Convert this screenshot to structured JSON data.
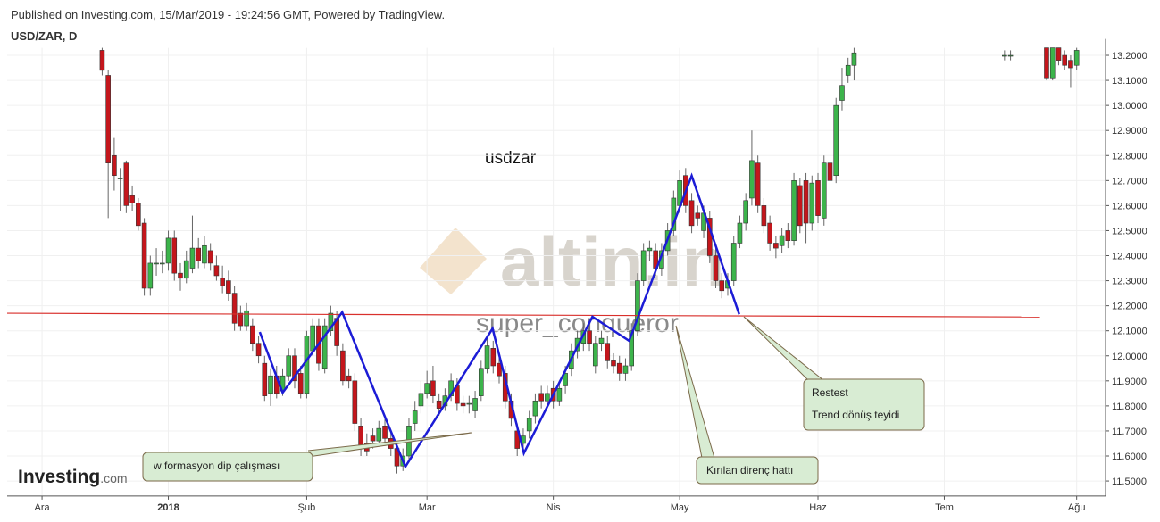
{
  "chart_data": {
    "type": "candlestick",
    "subtitle": "Published on Investing.com, 15/Mar/2019 - 19:24:56 GMT, Powered by TradingView.",
    "title": "USD/ZAR, D",
    "label": "usdzar",
    "watermarks": [
      "altin.in",
      "super_conqueror"
    ],
    "logo": [
      "Investing",
      ".com"
    ],
    "callouts": [
      "w  formasyon dip çalışması",
      "Kırılan direnç hattı",
      "Restest",
      "Trend dönüş teyidi"
    ],
    "up_color": "#3cb44b",
    "down_color": "#c4161c",
    "xlim": [
      -5.8,
      176.8
    ],
    "xticks": [
      {
        "value": 0,
        "label": "Ara"
      },
      {
        "value": 21,
        "label": "2018"
      },
      {
        "value": 44,
        "label": "Şub"
      },
      {
        "value": 64,
        "label": "Mar"
      },
      {
        "value": 85,
        "label": "Nis"
      },
      {
        "value": 106,
        "label": "May"
      },
      {
        "value": 129,
        "label": "Haz"
      },
      {
        "value": 150,
        "label": "Tem"
      },
      {
        "value": 172,
        "label": "Ağu"
      }
    ],
    "ylim": [
      11.44,
      13.23
    ],
    "yticks": [
      {
        "value": 11.5,
        "label": "11.5000"
      },
      {
        "value": 11.6,
        "label": "11.6000"
      },
      {
        "value": 11.7,
        "label": "11.7000"
      },
      {
        "value": 11.8,
        "label": "11.8000"
      },
      {
        "value": 11.9,
        "label": "11.9000"
      },
      {
        "value": 12,
        "label": "12.0000"
      },
      {
        "value": 12.1,
        "label": "12.1000"
      },
      {
        "value": 12.2,
        "label": "12.2000"
      },
      {
        "value": 12.3,
        "label": "12.3000"
      },
      {
        "value": 12.4,
        "label": "12.4000"
      },
      {
        "value": 12.5,
        "label": "12.5000"
      },
      {
        "value": 12.6,
        "label": "12.6000"
      },
      {
        "value": 12.7,
        "label": "12.7000"
      },
      {
        "value": 12.8,
        "label": "12.8000"
      },
      {
        "value": 12.9,
        "label": "12.9000"
      },
      {
        "value": 13,
        "label": "13.0000"
      },
      {
        "value": 13.1,
        "label": "13.1000"
      },
      {
        "value": 13.2,
        "label": "13.2000"
      }
    ],
    "candles": [
      {
        "x": 10,
        "o": 13.22,
        "h": 13.23,
        "l": 13.12,
        "c": 13.14
      },
      {
        "x": 11,
        "o": 13.12,
        "h": 13.14,
        "l": 12.55,
        "c": 12.77
      },
      {
        "x": 12,
        "o": 12.8,
        "h": 12.87,
        "l": 12.66,
        "c": 12.72
      },
      {
        "x": 13,
        "o": 12.71,
        "h": 12.75,
        "l": 12.58,
        "c": 12.71
      },
      {
        "x": 14,
        "o": 12.77,
        "h": 12.78,
        "l": 12.57,
        "c": 12.6
      },
      {
        "x": 15,
        "o": 12.64,
        "h": 12.68,
        "l": 12.58,
        "c": 12.61
      },
      {
        "x": 16,
        "o": 12.61,
        "h": 12.63,
        "l": 12.5,
        "c": 12.52
      },
      {
        "x": 17,
        "o": 12.53,
        "h": 12.55,
        "l": 12.24,
        "c": 12.27
      },
      {
        "x": 18,
        "o": 12.27,
        "h": 12.4,
        "l": 12.24,
        "c": 12.37
      },
      {
        "x": 19,
        "o": 12.37,
        "h": 12.43,
        "l": 12.32,
        "c": 12.37
      },
      {
        "x": 20,
        "o": 12.37,
        "h": 12.42,
        "l": 12.33,
        "c": 12.37
      },
      {
        "x": 21,
        "o": 12.37,
        "h": 12.5,
        "l": 12.34,
        "c": 12.47
      },
      {
        "x": 22,
        "o": 12.47,
        "h": 12.5,
        "l": 12.3,
        "c": 12.33
      },
      {
        "x": 23,
        "o": 12.33,
        "h": 12.37,
        "l": 12.26,
        "c": 12.31
      },
      {
        "x": 24,
        "o": 12.31,
        "h": 12.42,
        "l": 12.29,
        "c": 12.38
      },
      {
        "x": 25,
        "o": 12.35,
        "h": 12.56,
        "l": 12.33,
        "c": 12.43
      },
      {
        "x": 26,
        "o": 12.43,
        "h": 12.47,
        "l": 12.35,
        "c": 12.38
      },
      {
        "x": 27,
        "o": 12.37,
        "h": 12.48,
        "l": 12.35,
        "c": 12.44
      },
      {
        "x": 28,
        "o": 12.42,
        "h": 12.45,
        "l": 12.34,
        "c": 12.37
      },
      {
        "x": 29,
        "o": 12.36,
        "h": 12.4,
        "l": 12.3,
        "c": 12.32
      },
      {
        "x": 30,
        "o": 12.31,
        "h": 12.36,
        "l": 12.25,
        "c": 12.28
      },
      {
        "x": 31,
        "o": 12.3,
        "h": 12.34,
        "l": 12.22,
        "c": 12.25
      },
      {
        "x": 32,
        "o": 12.25,
        "h": 12.28,
        "l": 12.1,
        "c": 12.13
      },
      {
        "x": 33,
        "o": 12.17,
        "h": 12.2,
        "l": 12.1,
        "c": 12.12
      },
      {
        "x": 34,
        "o": 12.12,
        "h": 12.21,
        "l": 12.1,
        "c": 12.18
      },
      {
        "x": 35,
        "o": 12.12,
        "h": 12.15,
        "l": 12.02,
        "c": 12.05
      },
      {
        "x": 36,
        "o": 12.05,
        "h": 12.08,
        "l": 11.97,
        "c": 12.0
      },
      {
        "x": 37,
        "o": 11.97,
        "h": 12.0,
        "l": 11.82,
        "c": 11.84
      },
      {
        "x": 38,
        "o": 11.85,
        "h": 11.95,
        "l": 11.8,
        "c": 11.92
      },
      {
        "x": 39,
        "o": 11.92,
        "h": 11.96,
        "l": 11.83,
        "c": 11.85
      },
      {
        "x": 40,
        "o": 11.86,
        "h": 11.95,
        "l": 11.84,
        "c": 11.92
      },
      {
        "x": 41,
        "o": 11.92,
        "h": 12.03,
        "l": 11.9,
        "c": 12.0
      },
      {
        "x": 42,
        "o": 12.0,
        "h": 12.03,
        "l": 11.87,
        "c": 11.9
      },
      {
        "x": 43,
        "o": 11.93,
        "h": 11.96,
        "l": 11.83,
        "c": 11.85
      },
      {
        "x": 44,
        "o": 11.85,
        "h": 12.1,
        "l": 11.83,
        "c": 12.08
      },
      {
        "x": 45,
        "o": 12.02,
        "h": 12.15,
        "l": 12.0,
        "c": 12.12
      },
      {
        "x": 46,
        "o": 12.12,
        "h": 12.15,
        "l": 11.94,
        "c": 11.97
      },
      {
        "x": 47,
        "o": 11.95,
        "h": 12.15,
        "l": 11.93,
        "c": 12.12
      },
      {
        "x": 48,
        "o": 12.1,
        "h": 12.2,
        "l": 12.08,
        "c": 12.17
      },
      {
        "x": 49,
        "o": 12.15,
        "h": 12.18,
        "l": 12.0,
        "c": 12.04
      },
      {
        "x": 50,
        "o": 12.02,
        "h": 12.05,
        "l": 11.88,
        "c": 11.9
      },
      {
        "x": 51,
        "o": 11.92,
        "h": 11.95,
        "l": 11.87,
        "c": 11.9
      },
      {
        "x": 52,
        "o": 11.9,
        "h": 11.93,
        "l": 11.7,
        "c": 11.73
      },
      {
        "x": 53,
        "o": 11.72,
        "h": 11.75,
        "l": 11.6,
        "c": 11.64
      },
      {
        "x": 54,
        "o": 11.65,
        "h": 11.69,
        "l": 11.6,
        "c": 11.62
      },
      {
        "x": 55,
        "o": 11.68,
        "h": 11.71,
        "l": 11.63,
        "c": 11.66
      },
      {
        "x": 56,
        "o": 11.66,
        "h": 11.74,
        "l": 11.64,
        "c": 11.71
      },
      {
        "x": 57,
        "o": 11.72,
        "h": 11.75,
        "l": 11.64,
        "c": 11.67
      },
      {
        "x": 58,
        "o": 11.67,
        "h": 11.7,
        "l": 11.6,
        "c": 11.63
      },
      {
        "x": 59,
        "o": 11.63,
        "h": 11.66,
        "l": 11.53,
        "c": 11.56
      },
      {
        "x": 60,
        "o": 11.56,
        "h": 11.63,
        "l": 11.54,
        "c": 11.6
      },
      {
        "x": 61,
        "o": 11.6,
        "h": 11.75,
        "l": 11.58,
        "c": 11.72
      },
      {
        "x": 62,
        "o": 11.73,
        "h": 11.82,
        "l": 11.7,
        "c": 11.78
      },
      {
        "x": 63,
        "o": 11.8,
        "h": 11.9,
        "l": 11.77,
        "c": 11.85
      },
      {
        "x": 64,
        "o": 11.85,
        "h": 11.94,
        "l": 11.83,
        "c": 11.89
      },
      {
        "x": 65,
        "o": 11.9,
        "h": 11.96,
        "l": 11.81,
        "c": 11.84
      },
      {
        "x": 66,
        "o": 11.82,
        "h": 11.85,
        "l": 11.76,
        "c": 11.79
      },
      {
        "x": 67,
        "o": 11.8,
        "h": 11.87,
        "l": 11.78,
        "c": 11.84
      },
      {
        "x": 68,
        "o": 11.84,
        "h": 11.93,
        "l": 11.82,
        "c": 11.9
      },
      {
        "x": 69,
        "o": 11.88,
        "h": 11.91,
        "l": 11.78,
        "c": 11.81
      },
      {
        "x": 70,
        "o": 11.81,
        "h": 11.84,
        "l": 11.77,
        "c": 11.8
      },
      {
        "x": 71,
        "o": 11.81,
        "h": 11.84,
        "l": 11.77,
        "c": 11.81
      },
      {
        "x": 72,
        "o": 11.78,
        "h": 11.86,
        "l": 11.75,
        "c": 11.83
      },
      {
        "x": 73,
        "o": 11.84,
        "h": 11.98,
        "l": 11.82,
        "c": 11.95
      },
      {
        "x": 74,
        "o": 11.95,
        "h": 12.08,
        "l": 11.93,
        "c": 12.04
      },
      {
        "x": 75,
        "o": 12.03,
        "h": 12.06,
        "l": 11.93,
        "c": 11.96
      },
      {
        "x": 76,
        "o": 11.97,
        "h": 12.0,
        "l": 11.89,
        "c": 11.92
      },
      {
        "x": 77,
        "o": 11.93,
        "h": 11.96,
        "l": 11.79,
        "c": 11.82
      },
      {
        "x": 78,
        "o": 11.82,
        "h": 11.85,
        "l": 11.72,
        "c": 11.75
      },
      {
        "x": 79,
        "o": 11.7,
        "h": 11.73,
        "l": 11.6,
        "c": 11.63
      },
      {
        "x": 80,
        "o": 11.65,
        "h": 11.71,
        "l": 11.62,
        "c": 11.68
      },
      {
        "x": 81,
        "o": 11.7,
        "h": 11.78,
        "l": 11.67,
        "c": 11.75
      },
      {
        "x": 82,
        "o": 11.76,
        "h": 11.85,
        "l": 11.73,
        "c": 11.82
      },
      {
        "x": 83,
        "o": 11.85,
        "h": 11.88,
        "l": 11.79,
        "c": 11.82
      },
      {
        "x": 84,
        "o": 11.82,
        "h": 11.88,
        "l": 11.79,
        "c": 11.85
      },
      {
        "x": 85,
        "o": 11.87,
        "h": 11.9,
        "l": 11.79,
        "c": 11.82
      },
      {
        "x": 86,
        "o": 11.82,
        "h": 11.9,
        "l": 11.8,
        "c": 11.87
      },
      {
        "x": 87,
        "o": 11.88,
        "h": 11.96,
        "l": 11.85,
        "c": 11.93
      },
      {
        "x": 88,
        "o": 11.95,
        "h": 12.05,
        "l": 11.92,
        "c": 12.02
      },
      {
        "x": 89,
        "o": 12.02,
        "h": 12.1,
        "l": 11.99,
        "c": 12.07
      },
      {
        "x": 90,
        "o": 12.05,
        "h": 12.13,
        "l": 12.02,
        "c": 12.1
      },
      {
        "x": 91,
        "o": 12.1,
        "h": 12.13,
        "l": 12.02,
        "c": 12.05
      },
      {
        "x": 92,
        "o": 11.96,
        "h": 12.08,
        "l": 11.93,
        "c": 12.05
      },
      {
        "x": 93,
        "o": 12.05,
        "h": 12.1,
        "l": 12.02,
        "c": 12.07
      },
      {
        "x": 94,
        "o": 12.05,
        "h": 12.08,
        "l": 11.95,
        "c": 11.98
      },
      {
        "x": 95,
        "o": 11.98,
        "h": 12.01,
        "l": 11.93,
        "c": 11.96
      },
      {
        "x": 96,
        "o": 11.97,
        "h": 12.0,
        "l": 11.9,
        "c": 11.93
      },
      {
        "x": 97,
        "o": 11.93,
        "h": 11.99,
        "l": 11.9,
        "c": 11.96
      },
      {
        "x": 98,
        "o": 11.96,
        "h": 12.13,
        "l": 11.94,
        "c": 12.1
      },
      {
        "x": 99,
        "o": 12.1,
        "h": 12.33,
        "l": 12.08,
        "c": 12.3
      },
      {
        "x": 100,
        "o": 12.3,
        "h": 12.45,
        "l": 12.28,
        "c": 12.42
      },
      {
        "x": 101,
        "o": 12.42,
        "h": 12.46,
        "l": 12.38,
        "c": 12.43
      },
      {
        "x": 102,
        "o": 12.42,
        "h": 12.45,
        "l": 12.32,
        "c": 12.35
      },
      {
        "x": 103,
        "o": 12.35,
        "h": 12.45,
        "l": 12.32,
        "c": 12.42
      },
      {
        "x": 104,
        "o": 12.42,
        "h": 12.53,
        "l": 12.4,
        "c": 12.5
      },
      {
        "x": 105,
        "o": 12.5,
        "h": 12.66,
        "l": 12.48,
        "c": 12.63
      },
      {
        "x": 106,
        "o": 12.6,
        "h": 12.74,
        "l": 12.57,
        "c": 12.7
      },
      {
        "x": 107,
        "o": 12.72,
        "h": 12.75,
        "l": 12.57,
        "c": 12.6
      },
      {
        "x": 108,
        "o": 12.62,
        "h": 12.65,
        "l": 12.49,
        "c": 12.52
      },
      {
        "x": 109,
        "o": 12.57,
        "h": 12.6,
        "l": 12.52,
        "c": 12.55
      },
      {
        "x": 110,
        "o": 12.5,
        "h": 12.6,
        "l": 12.47,
        "c": 12.57
      },
      {
        "x": 111,
        "o": 12.55,
        "h": 12.58,
        "l": 12.37,
        "c": 12.4
      },
      {
        "x": 112,
        "o": 12.4,
        "h": 12.43,
        "l": 12.27,
        "c": 12.3
      },
      {
        "x": 113,
        "o": 12.3,
        "h": 12.33,
        "l": 12.23,
        "c": 12.26
      },
      {
        "x": 114,
        "o": 12.27,
        "h": 12.33,
        "l": 12.24,
        "c": 12.3
      },
      {
        "x": 115,
        "o": 12.3,
        "h": 12.48,
        "l": 12.28,
        "c": 12.45
      },
      {
        "x": 116,
        "o": 12.45,
        "h": 12.56,
        "l": 12.43,
        "c": 12.53
      },
      {
        "x": 117,
        "o": 12.53,
        "h": 12.65,
        "l": 12.5,
        "c": 12.62
      },
      {
        "x": 118,
        "o": 12.63,
        "h": 12.9,
        "l": 12.6,
        "c": 12.78
      },
      {
        "x": 119,
        "o": 12.77,
        "h": 12.8,
        "l": 12.57,
        "c": 12.6
      },
      {
        "x": 120,
        "o": 12.6,
        "h": 12.63,
        "l": 12.49,
        "c": 12.52
      },
      {
        "x": 121,
        "o": 12.53,
        "h": 12.56,
        "l": 12.42,
        "c": 12.45
      },
      {
        "x": 122,
        "o": 12.45,
        "h": 12.48,
        "l": 12.39,
        "c": 12.43
      },
      {
        "x": 123,
        "o": 12.44,
        "h": 12.51,
        "l": 12.41,
        "c": 12.48
      },
      {
        "x": 124,
        "o": 12.5,
        "h": 12.53,
        "l": 12.43,
        "c": 12.46
      },
      {
        "x": 125,
        "o": 12.46,
        "h": 12.73,
        "l": 12.44,
        "c": 12.7
      },
      {
        "x": 126,
        "o": 12.68,
        "h": 12.71,
        "l": 12.49,
        "c": 12.52
      },
      {
        "x": 127,
        "o": 12.7,
        "h": 12.73,
        "l": 12.45,
        "c": 12.53
      },
      {
        "x": 128,
        "o": 12.53,
        "h": 12.72,
        "l": 12.5,
        "c": 12.69
      },
      {
        "x": 129,
        "o": 12.7,
        "h": 12.73,
        "l": 12.53,
        "c": 12.56
      },
      {
        "x": 130,
        "o": 12.55,
        "h": 12.8,
        "l": 12.52,
        "c": 12.77
      },
      {
        "x": 131,
        "o": 12.77,
        "h": 12.8,
        "l": 12.67,
        "c": 12.7
      },
      {
        "x": 132,
        "o": 12.72,
        "h": 13.03,
        "l": 12.69,
        "c": 13.0
      },
      {
        "x": 133,
        "o": 13.02,
        "h": 13.15,
        "l": 12.98,
        "c": 13.08
      },
      {
        "x": 134,
        "o": 13.12,
        "h": 13.19,
        "l": 13.09,
        "c": 13.16
      },
      {
        "x": 135,
        "o": 13.16,
        "h": 13.23,
        "l": 13.1,
        "c": 13.21
      },
      {
        "x": 160,
        "o": 13.2,
        "h": 13.22,
        "l": 13.18,
        "c": 13.2
      },
      {
        "x": 161,
        "o": 13.2,
        "h": 13.22,
        "l": 13.18,
        "c": 13.2
      },
      {
        "x": 167,
        "o": 13.23,
        "h": 13.23,
        "l": 13.1,
        "c": 13.11
      },
      {
        "x": 168,
        "o": 13.11,
        "h": 13.23,
        "l": 13.1,
        "c": 13.23
      },
      {
        "x": 169,
        "o": 13.23,
        "h": 13.23,
        "l": 13.16,
        "c": 13.18
      },
      {
        "x": 170,
        "o": 13.2,
        "h": 13.22,
        "l": 13.14,
        "c": 13.16
      },
      {
        "x": 171,
        "o": 13.18,
        "h": 13.2,
        "l": 13.07,
        "c": 13.15
      },
      {
        "x": 172,
        "o": 13.16,
        "h": 13.23,
        "l": 13.14,
        "c": 13.22
      }
    ],
    "resistance_line": {
      "color": "#d9302c",
      "x": [
        -5.8,
        165.9
      ],
      "y": [
        12.17,
        12.155
      ]
    },
    "pattern_line": {
      "color": "#1c1cd6",
      "x": [
        36.2,
        40.0,
        49.9,
        60.4,
        74.9,
        80.1,
        91.5,
        97.6,
        108.0,
        115.9
      ],
      "y": [
        12.095,
        11.853,
        12.174,
        11.557,
        12.109,
        11.611,
        12.156,
        12.06,
        12.719,
        12.166
      ]
    }
  }
}
